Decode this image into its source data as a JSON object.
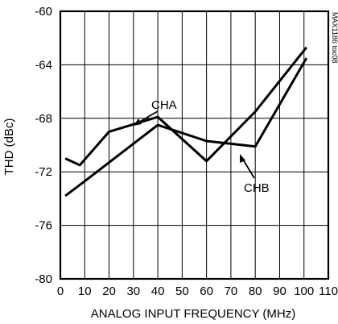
{
  "chart_data": {
    "type": "line",
    "xlabel": "ANALOG INPUT FREQUENCY (MHz)",
    "ylabel": "THD (dBc)",
    "xlim": [
      0,
      110
    ],
    "ylim": [
      -80,
      -60
    ],
    "x_ticks": [
      "0",
      "10",
      "20",
      "30",
      "40",
      "50",
      "60",
      "70",
      "80",
      "90",
      "100",
      "110"
    ],
    "y_ticks": [
      "-60",
      "-64",
      "-68",
      "-72",
      "-76",
      "-80"
    ],
    "grid": true,
    "figure_id": "MAX1186 toc08",
    "series": [
      {
        "name": "CHA",
        "x": [
          2,
          8,
          20,
          40,
          60,
          80,
          101
        ],
        "y": [
          -71.0,
          -71.5,
          -69.0,
          -67.9,
          -71.2,
          -67.5,
          -62.7
        ]
      },
      {
        "name": "CHB",
        "x": [
          2,
          10,
          40,
          60,
          80,
          101
        ],
        "y": [
          -73.8,
          -72.7,
          -68.5,
          -69.7,
          -70.1,
          -63.5
        ]
      }
    ]
  }
}
